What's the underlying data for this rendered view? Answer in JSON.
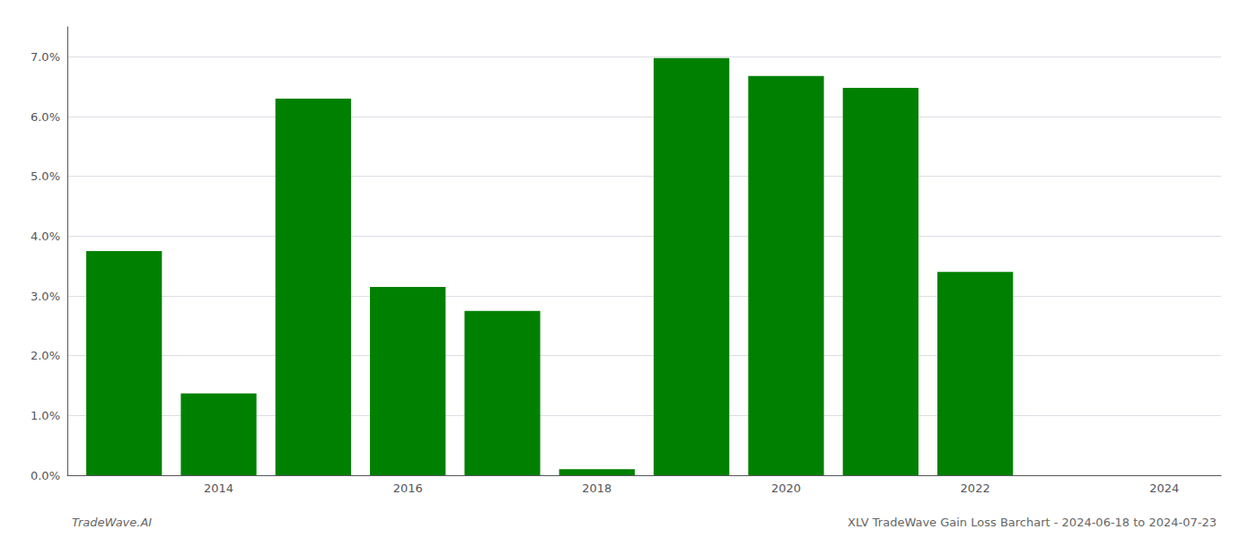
{
  "chart_data": {
    "type": "bar",
    "x": [
      2013,
      2014,
      2015,
      2016,
      2017,
      2018,
      2019,
      2020,
      2021,
      2022,
      2023
    ],
    "values": [
      0.0375,
      0.0137,
      0.063,
      0.0315,
      0.0275,
      0.001,
      0.0698,
      0.0668,
      0.0648,
      0.034,
      0.0
    ],
    "color": "#008000",
    "xlim": [
      2012.4,
      2024.6
    ],
    "xticks": [
      2014,
      2016,
      2018,
      2020,
      2022,
      2024
    ],
    "ylim": [
      0.0,
      0.075
    ],
    "yticks": [
      {
        "value": 0.0,
        "label": "0.0%"
      },
      {
        "value": 0.01,
        "label": "1.0%"
      },
      {
        "value": 0.02,
        "label": "2.0%"
      },
      {
        "value": 0.03,
        "label": "3.0%"
      },
      {
        "value": 0.04,
        "label": "4.0%"
      },
      {
        "value": 0.05,
        "label": "5.0%"
      },
      {
        "value": 0.06,
        "label": "6.0%"
      },
      {
        "value": 0.07,
        "label": "7.0%"
      }
    ],
    "grid": true,
    "annotations": [
      "TradeWave.AI",
      "XLV TradeWave Gain Loss Barchart - 2024-06-18 to 2024-07-23"
    ]
  }
}
